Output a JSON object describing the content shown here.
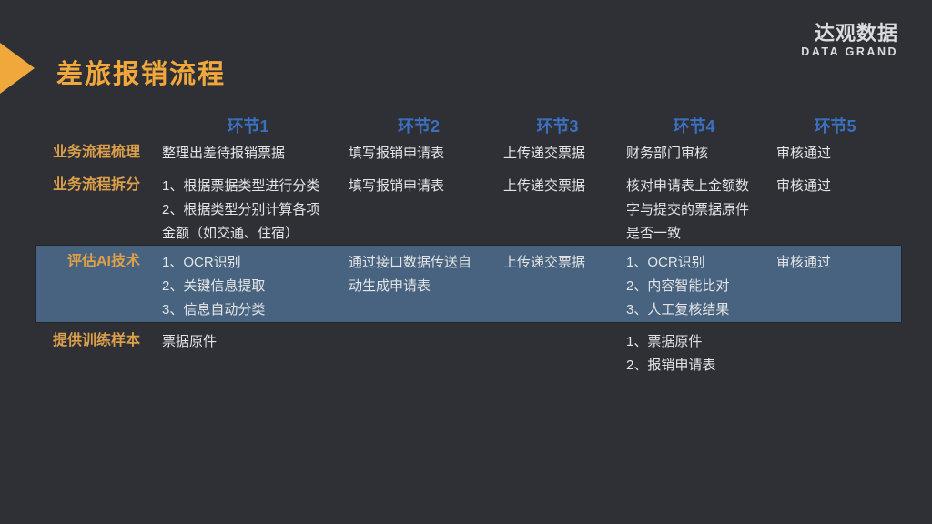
{
  "slide": {
    "title": "差旅报销流程",
    "logo": {
      "cn": "达观数据",
      "en": "DATA GRAND"
    }
  },
  "colors": {
    "background": "#2E3036",
    "accent_orange": "#F0A83C",
    "label_orange": "#DCA04A",
    "header_blue": "#3B70BE",
    "highlight_band": "#47637F",
    "body_text": "#E4E4E6",
    "logo_color": "#DBDCDE"
  },
  "table": {
    "column_headers": [
      "环节1",
      "环节2",
      "环节3",
      "环节4",
      "环节5"
    ],
    "rows": [
      {
        "label": "业务流程梳理",
        "highlighted": false,
        "cells": [
          [
            "整理出差待报销票据"
          ],
          [
            "填写报销申请表"
          ],
          [
            "上传递交票据"
          ],
          [
            "财务部门审核"
          ],
          [
            "审核通过"
          ]
        ]
      },
      {
        "label": "业务流程拆分",
        "highlighted": false,
        "cells": [
          [
            "1、根据票据类型进行分类",
            "2、根据类型分别计算各项金额（如交通、住宿）"
          ],
          [
            "填写报销申请表"
          ],
          [
            "上传递交票据"
          ],
          [
            "核对申请表上金额数字与提交的票据原件是否一致"
          ],
          [
            "审核通过"
          ]
        ]
      },
      {
        "label": "评估AI技术",
        "highlighted": true,
        "cells": [
          [
            "1、OCR识别",
            "2、关键信息提取",
            "3、信息自动分类"
          ],
          [
            "通过接口数据传送自动生成申请表"
          ],
          [
            "上传递交票据"
          ],
          [
            "1、OCR识别",
            "2、内容智能比对",
            "3、人工复核结果"
          ],
          [
            "审核通过"
          ]
        ]
      },
      {
        "label": "提供训练样本",
        "highlighted": false,
        "cells": [
          [
            "票据原件"
          ],
          [],
          [],
          [
            "1、票据原件",
            "2、报销申请表"
          ],
          []
        ]
      }
    ]
  }
}
